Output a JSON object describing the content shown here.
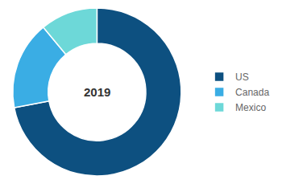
{
  "chart_data": {
    "type": "donut",
    "categories": [
      "US",
      "Canada",
      "Mexico"
    ],
    "values": [
      72,
      17,
      11
    ],
    "colors": [
      "#0d5080",
      "#3aade4",
      "#6dd8d8"
    ],
    "annotations": [
      "2019"
    ],
    "data_labels": false,
    "legend": "right"
  }
}
